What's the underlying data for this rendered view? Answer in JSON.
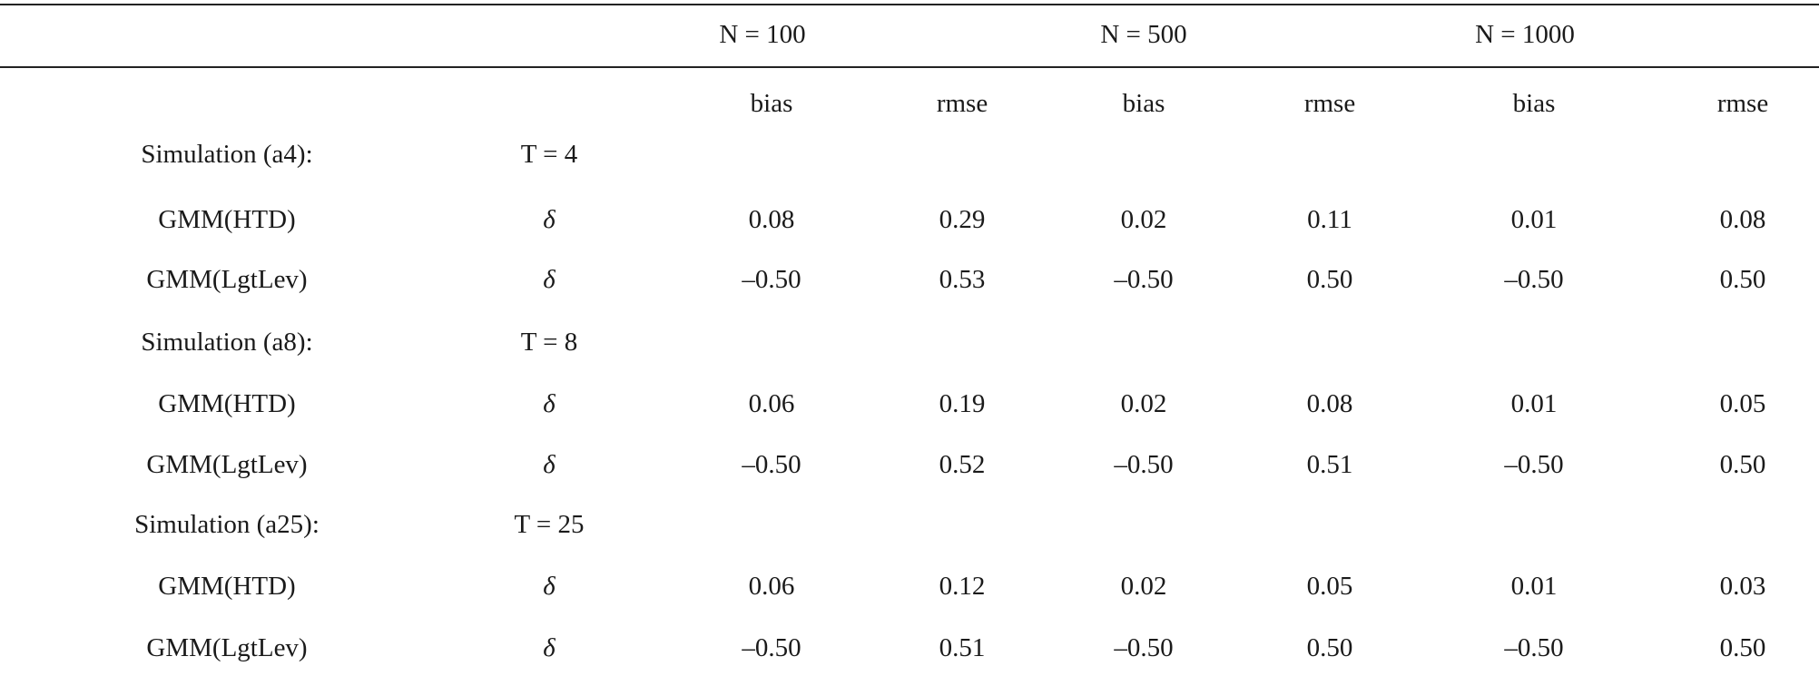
{
  "groups": [
    "N = 100",
    "N = 500",
    "N = 1000"
  ],
  "subheaders": [
    "bias",
    "rmse",
    "bias",
    "rmse",
    "bias",
    "rmse"
  ],
  "sections": [
    {
      "label": "Simulation (a4):",
      "t_label": "T = 4",
      "rows": [
        {
          "label": "GMM(HTD)",
          "param": "δ",
          "values": [
            "0.08",
            "0.29",
            "0.02",
            "0.11",
            "0.01",
            "0.08"
          ]
        },
        {
          "label": "GMM(LgtLev)",
          "param": "δ",
          "values": [
            "–0.50",
            "0.53",
            "–0.50",
            "0.50",
            "–0.50",
            "0.50"
          ]
        }
      ]
    },
    {
      "label": "Simulation (a8):",
      "t_label": "T = 8",
      "rows": [
        {
          "label": "GMM(HTD)",
          "param": "δ",
          "values": [
            "0.06",
            "0.19",
            "0.02",
            "0.08",
            "0.01",
            "0.05"
          ]
        },
        {
          "label": "GMM(LgtLev)",
          "param": "δ",
          "values": [
            "–0.50",
            "0.52",
            "–0.50",
            "0.51",
            "–0.50",
            "0.50"
          ]
        }
      ]
    },
    {
      "label": "Simulation (a25):",
      "t_label": "T = 25",
      "rows": [
        {
          "label": "GMM(HTD)",
          "param": "δ",
          "values": [
            "0.06",
            "0.12",
            "0.02",
            "0.05",
            "0.01",
            "0.03"
          ]
        },
        {
          "label": "GMM(LgtLev)",
          "param": "δ",
          "values": [
            "–0.50",
            "0.51",
            "–0.50",
            "0.50",
            "–0.50",
            "0.50"
          ]
        }
      ]
    }
  ]
}
